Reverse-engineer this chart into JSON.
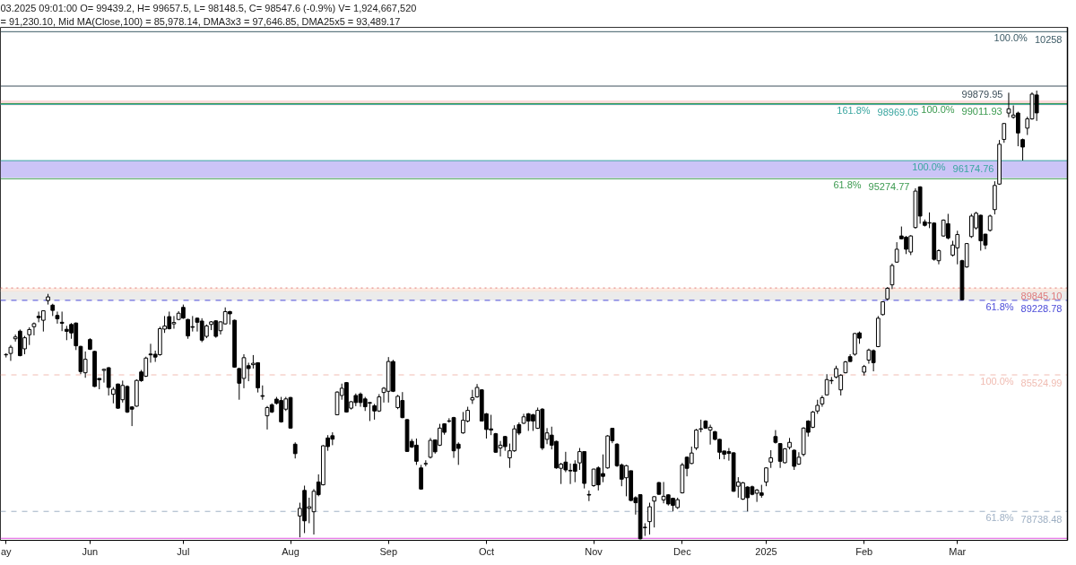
{
  "chart_data": {
    "type": "candlestick",
    "title": "03.2025 09:01:00 O= 99439.2, H= 99657.5, L= 98148.5, C= 98547.6 (-0.9%) V= 1,924,667,520",
    "subtitle": "= 91,230.10, Mid MA(Close,100) = 85,978.14, DMA3x3 = 97,646.85, DMA25x5 = 93,489.17",
    "categories": [
      "ay",
      null,
      null,
      null,
      null,
      null,
      null,
      null,
      null,
      null,
      null,
      null,
      null,
      null,
      null,
      null,
      null,
      null,
      "Jun",
      null,
      null,
      null,
      null,
      null,
      null,
      null,
      null,
      null,
      null,
      null,
      null,
      null,
      null,
      null,
      null,
      null,
      null,
      null,
      "Jul",
      null,
      null,
      null,
      null,
      null,
      null,
      null,
      null,
      null,
      null,
      null,
      null,
      null,
      null,
      null,
      null,
      null,
      null,
      null,
      null,
      null,
      null,
      "Aug",
      null,
      null,
      null,
      null,
      null,
      null,
      null,
      null,
      null,
      null,
      null,
      null,
      null,
      null,
      null,
      null,
      null,
      null,
      null,
      null,
      "Sep",
      null,
      null,
      null,
      null,
      null,
      null,
      null,
      null,
      null,
      null,
      null,
      null,
      null,
      null,
      null,
      null,
      null,
      null,
      null,
      null,
      "Oct",
      null,
      null,
      null,
      null,
      null,
      null,
      null,
      null,
      null,
      null,
      null,
      null,
      null,
      null,
      null,
      null,
      null,
      null,
      null,
      null,
      null,
      null,
      "Nov",
      null,
      null,
      null,
      null,
      null,
      null,
      null,
      null,
      null,
      null,
      null,
      null,
      null,
      null,
      null,
      null,
      null,
      null,
      "Dec",
      null,
      null,
      null,
      null,
      null,
      null,
      null,
      null,
      null,
      null,
      null,
      null,
      null,
      null,
      null,
      null,
      null,
      "2025",
      null,
      null,
      null,
      null,
      null,
      null,
      null,
      null,
      null,
      null,
      null,
      null,
      null,
      null,
      null,
      null,
      null,
      null,
      null,
      null,
      "Feb",
      null,
      null,
      null,
      null,
      null,
      null,
      null,
      null,
      null,
      null,
      null,
      null,
      null,
      null,
      null,
      null,
      null,
      null,
      null,
      "Mar",
      null,
      null,
      null,
      null,
      null,
      null,
      null,
      null,
      null,
      null,
      null,
      null,
      null,
      null,
      null,
      null,
      null
    ],
    "ohlc": [
      [
        86520,
        86600,
        86390,
        86540
      ],
      [
        86590,
        87010,
        86220,
        86900
      ],
      [
        87320,
        87530,
        87180,
        87410
      ],
      [
        87700,
        87780,
        86450,
        86480
      ],
      [
        86820,
        87460,
        86550,
        87370
      ],
      [
        87520,
        87890,
        87010,
        87780
      ],
      [
        87920,
        88130,
        87490,
        88070
      ],
      [
        88440,
        88670,
        88140,
        88370
      ],
      [
        88240,
        88730,
        87680,
        88710
      ],
      [
        89220,
        89550,
        89020,
        89400
      ],
      [
        88990,
        89060,
        88450,
        88730
      ],
      [
        88480,
        88670,
        88070,
        88310
      ],
      [
        88140,
        88670,
        87700,
        88090
      ],
      [
        87790,
        87960,
        87250,
        87690
      ],
      [
        88030,
        88100,
        87320,
        87610
      ],
      [
        88100,
        88130,
        86760,
        86970
      ],
      [
        86940,
        86970,
        85560,
        85690
      ],
      [
        85630,
        86690,
        85380,
        86300
      ],
      [
        87280,
        87350,
        86760,
        86800
      ],
      [
        86690,
        86720,
        84920,
        84950
      ],
      [
        85350,
        85350,
        84810,
        85280
      ],
      [
        85750,
        85840,
        85140,
        85800
      ],
      [
        85880,
        85910,
        84500,
        84900
      ],
      [
        84560,
        84920,
        84110,
        84810
      ],
      [
        85070,
        85090,
        83840,
        83870
      ],
      [
        84290,
        85240,
        84150,
        85000
      ],
      [
        84950,
        85000,
        83630,
        83680
      ],
      [
        83930,
        83970,
        82980,
        83820
      ],
      [
        83970,
        85300,
        83940,
        85250
      ],
      [
        85670,
        85770,
        85180,
        85240
      ],
      [
        85460,
        86430,
        85420,
        86360
      ],
      [
        86560,
        87070,
        86130,
        86520
      ],
      [
        86550,
        86730,
        86170,
        86410
      ],
      [
        86530,
        87920,
        86480,
        87820
      ],
      [
        87800,
        88450,
        87610,
        87950
      ],
      [
        88420,
        88670,
        87780,
        87820
      ],
      [
        88060,
        88450,
        87820,
        88130
      ],
      [
        88280,
        88690,
        88240,
        88590
      ],
      [
        88880,
        89020,
        88310,
        88350
      ],
      [
        88280,
        88310,
        87320,
        87460
      ],
      [
        87920,
        88450,
        87680,
        87890
      ],
      [
        88340,
        88380,
        87680,
        88140
      ],
      [
        88200,
        88340,
        87150,
        87250
      ],
      [
        87440,
        88030,
        87350,
        87960
      ],
      [
        88030,
        88200,
        87750,
        88160
      ],
      [
        88210,
        88240,
        87370,
        87440
      ],
      [
        87720,
        88180,
        87530,
        88160
      ],
      [
        88060,
        88880,
        88030,
        88670
      ],
      [
        88670,
        88710,
        88030,
        88560
      ],
      [
        88240,
        88270,
        85880,
        85910
      ],
      [
        85840,
        85870,
        84290,
        85110
      ],
      [
        85350,
        86550,
        84860,
        86380
      ],
      [
        85980,
        86130,
        85210,
        85840
      ],
      [
        86030,
        86510,
        85840,
        86100
      ],
      [
        86130,
        86150,
        84650,
        84880
      ],
      [
        84490,
        85000,
        84290,
        84460
      ],
      [
        83490,
        83980,
        82810,
        83900
      ],
      [
        84040,
        84110,
        83630,
        83680
      ],
      [
        84320,
        84430,
        84050,
        84110
      ],
      [
        84250,
        84430,
        83150,
        83190
      ],
      [
        83820,
        84430,
        83730,
        84330
      ],
      [
        84400,
        84430,
        82850,
        82880
      ],
      [
        82080,
        82170,
        81370,
        81610
      ],
      [
        78510,
        79170,
        77450,
        78890
      ],
      [
        79780,
        80020,
        77660,
        78270
      ],
      [
        78890,
        79420,
        78150,
        78970
      ],
      [
        78720,
        79850,
        77590,
        79740
      ],
      [
        80200,
        80580,
        79490,
        79570
      ],
      [
        80060,
        82030,
        80030,
        82000
      ],
      [
        82390,
        82530,
        81750,
        81960
      ],
      [
        82500,
        82670,
        82030,
        82330
      ],
      [
        83540,
        84710,
        83520,
        84670
      ],
      [
        84500,
        85090,
        84290,
        84860
      ],
      [
        85140,
        85170,
        83650,
        83680
      ],
      [
        83870,
        84220,
        83800,
        84190
      ],
      [
        84500,
        84600,
        83970,
        84150
      ],
      [
        84570,
        84650,
        83940,
        84150
      ],
      [
        84330,
        84430,
        83730,
        83940
      ],
      [
        84150,
        84160,
        83230,
        84120
      ],
      [
        83990,
        84080,
        83300,
        83730
      ],
      [
        83730,
        84570,
        83680,
        84430
      ],
      [
        84650,
        84920,
        84150,
        84860
      ],
      [
        84710,
        86410,
        84150,
        86190
      ],
      [
        86190,
        86270,
        84670,
        84710
      ],
      [
        83900,
        84530,
        83820,
        84460
      ],
      [
        84250,
        84670,
        83370,
        83400
      ],
      [
        83300,
        83330,
        81700,
        81720
      ],
      [
        82220,
        82340,
        81890,
        81940
      ],
      [
        82030,
        82360,
        81050,
        81230
      ],
      [
        80900,
        81050,
        79820,
        79850
      ],
      [
        81100,
        81280,
        80980,
        81120
      ],
      [
        81430,
        82390,
        81370,
        82270
      ],
      [
        82290,
        82310,
        81610,
        81700
      ],
      [
        82030,
        83090,
        81990,
        82880
      ],
      [
        83090,
        83120,
        82550,
        82670
      ],
      [
        83240,
        83370,
        83150,
        83220
      ],
      [
        83400,
        83440,
        81400,
        81750
      ],
      [
        82080,
        82170,
        81050,
        81870
      ],
      [
        82640,
        83680,
        82600,
        83270
      ],
      [
        83230,
        83940,
        83160,
        83760
      ],
      [
        84280,
        84780,
        84080,
        84390
      ],
      [
        84430,
        85070,
        84390,
        84900
      ],
      [
        84780,
        84810,
        83230,
        83230
      ],
      [
        83590,
        83630,
        82360,
        82810
      ],
      [
        82840,
        83540,
        82530,
        82780
      ],
      [
        82600,
        82640,
        81650,
        81680
      ],
      [
        81890,
        82240,
        81470,
        82030
      ],
      [
        82460,
        82490,
        81750,
        81960
      ],
      [
        81400,
        82110,
        80900,
        81750
      ],
      [
        81750,
        83020,
        81700,
        82840
      ],
      [
        83050,
        83160,
        82530,
        82630
      ],
      [
        83120,
        83590,
        83090,
        83440
      ],
      [
        83590,
        83630,
        82740,
        83230
      ],
      [
        83540,
        83590,
        82740,
        83230
      ],
      [
        82870,
        83900,
        82840,
        83760
      ],
      [
        83820,
        83870,
        81790,
        81890
      ],
      [
        82320,
        82880,
        82080,
        82640
      ],
      [
        82530,
        82950,
        81820,
        82030
      ],
      [
        82220,
        82250,
        80860,
        80900
      ],
      [
        80880,
        81150,
        80100,
        81090
      ],
      [
        81190,
        81700,
        80690,
        80800
      ],
      [
        80780,
        81120,
        80100,
        80750
      ],
      [
        81090,
        81280,
        80190,
        80730
      ],
      [
        81150,
        81890,
        80800,
        81710
      ],
      [
        81710,
        81720,
        79880,
        80130
      ],
      [
        79580,
        79780,
        79250,
        79550
      ],
      [
        80020,
        80860,
        79960,
        80840
      ],
      [
        80900,
        80980,
        79780,
        80060
      ],
      [
        80620,
        81570,
        80190,
        80480
      ],
      [
        80900,
        82530,
        80860,
        82490
      ],
      [
        82870,
        82880,
        82130,
        82250
      ],
      [
        82080,
        82130,
        80950,
        81010
      ],
      [
        81050,
        81120,
        79990,
        80340
      ],
      [
        80410,
        81050,
        79490,
        81010
      ],
      [
        80760,
        80760,
        79250,
        79280
      ],
      [
        79420,
        79490,
        78580,
        79170
      ],
      [
        79570,
        79590,
        77340,
        77380
      ],
      [
        77950,
        78150,
        77520,
        77930
      ],
      [
        78230,
        79170,
        77590,
        78970
      ],
      [
        79250,
        79490,
        77940,
        79470
      ],
      [
        80170,
        80200,
        79570,
        79590
      ],
      [
        79310,
        80200,
        79140,
        79490
      ],
      [
        79560,
        79590,
        79030,
        79110
      ],
      [
        79390,
        79420,
        78740,
        79040
      ],
      [
        78930,
        79420,
        78860,
        79320
      ],
      [
        79660,
        81150,
        79630,
        81050
      ],
      [
        81430,
        81470,
        80480,
        80880
      ],
      [
        81120,
        81960,
        81090,
        81640
      ],
      [
        81890,
        82840,
        81790,
        82780
      ],
      [
        82820,
        83300,
        82670,
        82850
      ],
      [
        83230,
        83270,
        82840,
        82880
      ],
      [
        82780,
        83050,
        82060,
        82920
      ],
      [
        82700,
        82740,
        82270,
        82320
      ],
      [
        82320,
        82340,
        81330,
        81680
      ],
      [
        81740,
        81750,
        81330,
        81580
      ],
      [
        81710,
        81890,
        81260,
        81620
      ],
      [
        81650,
        81680,
        79710,
        79740
      ],
      [
        79990,
        80440,
        79420,
        80200
      ],
      [
        79350,
        80200,
        79310,
        80160
      ],
      [
        79950,
        79990,
        78740,
        79420
      ],
      [
        79960,
        80020,
        79540,
        79590
      ],
      [
        79640,
        79850,
        79210,
        79800
      ],
      [
        79660,
        80060,
        79420,
        79540
      ],
      [
        80200,
        80930,
        79990,
        80900
      ],
      [
        81190,
        81780,
        80900,
        81400
      ],
      [
        82460,
        82780,
        82110,
        82170
      ],
      [
        82110,
        82130,
        80900,
        81230
      ],
      [
        81160,
        81880,
        81120,
        81850
      ],
      [
        81920,
        82390,
        81820,
        82170
      ],
      [
        81780,
        81820,
        80800,
        80980
      ],
      [
        81090,
        81680,
        81050,
        81430
      ],
      [
        81570,
        82920,
        81480,
        82880
      ],
      [
        83230,
        83270,
        82460,
        82670
      ],
      [
        82920,
        83730,
        82880,
        83680
      ],
      [
        83730,
        84290,
        83590,
        84010
      ],
      [
        84080,
        84500,
        83940,
        84390
      ],
      [
        84530,
        85560,
        84500,
        85290
      ],
      [
        85230,
        85420,
        85070,
        85250
      ],
      [
        85420,
        85980,
        85350,
        85840
      ],
      [
        84780,
        85560,
        84500,
        85510
      ],
      [
        85630,
        86220,
        85600,
        86170
      ],
      [
        86430,
        86550,
        86170,
        86190
      ],
      [
        86550,
        87610,
        86480,
        87580
      ],
      [
        87610,
        87680,
        87070,
        87350
      ],
      [
        85660,
        86020,
        85490,
        85940
      ],
      [
        86260,
        86830,
        86080,
        86760
      ],
      [
        86730,
        86790,
        85700,
        86130
      ],
      [
        86930,
        88450,
        86900,
        88340
      ],
      [
        88520,
        89180,
        88480,
        89160
      ],
      [
        89300,
        89890,
        89230,
        89830
      ],
      [
        90000,
        91060,
        89790,
        90960
      ],
      [
        91130,
        92120,
        91100,
        91770
      ],
      [
        92430,
        92900,
        92260,
        92290
      ],
      [
        92370,
        92430,
        91530,
        91770
      ],
      [
        91630,
        92470,
        91480,
        92430
      ],
      [
        92850,
        94800,
        92790,
        94660
      ],
      [
        94870,
        94900,
        93040,
        93420
      ],
      [
        93130,
        93250,
        92900,
        92960
      ],
      [
        93070,
        93600,
        92820,
        93090
      ],
      [
        93070,
        93110,
        91200,
        91270
      ],
      [
        91200,
        91770,
        91020,
        91700
      ],
      [
        92430,
        93250,
        92400,
        93220
      ],
      [
        93040,
        93530,
        92260,
        92330
      ],
      [
        91480,
        92190,
        91410,
        91980
      ],
      [
        91840,
        92690,
        91020,
        92500
      ],
      [
        91200,
        91250,
        89230,
        89260
      ],
      [
        90890,
        92080,
        90850,
        92050
      ],
      [
        92400,
        93530,
        92330,
        93420
      ],
      [
        92830,
        93630,
        92750,
        93560
      ],
      [
        93460,
        93490,
        91700,
        92190
      ],
      [
        92520,
        92540,
        91770,
        91980
      ],
      [
        92710,
        93490,
        92650,
        93420
      ],
      [
        93740,
        95150,
        93500,
        94940
      ],
      [
        95010,
        97200,
        94970,
        96990
      ],
      [
        97230,
        98040,
        97060,
        98020
      ],
      [
        98540,
        99550,
        98330,
        98750
      ],
      [
        98330,
        98920,
        98260,
        98440
      ],
      [
        98540,
        98610,
        96890,
        97550
      ],
      [
        97220,
        97270,
        96180,
        96850
      ],
      [
        97790,
        98360,
        97450,
        98250
      ],
      [
        98250,
        99570,
        98210,
        99480
      ],
      [
        99439.2,
        99657.5,
        98148.5,
        98547.6
      ]
    ],
    "color": "#000000",
    "ylim": [
      77300,
      102800
    ],
    "tick_labels": "x",
    "ref_lines": [
      {
        "axis": "y",
        "value": 102585,
        "color": "#3d5b66"
      },
      {
        "axis": "y",
        "value": 99879.95,
        "label": "99879.95",
        "color": "#3d4f5a"
      },
      {
        "axis": "y",
        "value": 99011.93,
        "label": "99011.93",
        "color": "#3c9a50"
      },
      {
        "axis": "y",
        "value": 98969.05,
        "label": "98969.05",
        "color": "#3aa6a0"
      },
      {
        "axis": "y",
        "value": 96174.76,
        "label": "96174.76",
        "color": "#3aa6a0"
      },
      {
        "axis": "y",
        "value": 95274.77,
        "label": "95274.77",
        "color": "#3c9a50"
      },
      {
        "axis": "y",
        "value": 89845.1,
        "label": "89845.10",
        "color": "#e07a7a",
        "line_style": "dotted"
      },
      {
        "axis": "y",
        "value": 89228.78,
        "label": "89228.78",
        "color": "#4b4bd8",
        "line_style": "dashed"
      },
      {
        "axis": "y",
        "value": 85524.99,
        "label": "85524.99",
        "color": "#f0bcb2",
        "line_style": "dashed"
      },
      {
        "axis": "y",
        "value": 78738.48,
        "label": "78738.48",
        "color": "#9fb0c4",
        "line_style": "dashed"
      },
      {
        "axis": "y",
        "value": 77400,
        "color": "#e055e0"
      }
    ],
    "bands": [
      {
        "axis": "y",
        "from": 95320,
        "to": 96174.76,
        "color": "#a99cf2"
      },
      {
        "axis": "y",
        "from": 89228.78,
        "to": 89720,
        "color": "#dedede"
      },
      {
        "axis": "y",
        "from": 98920,
        "to": 99170,
        "color": "#f6c4c4"
      },
      {
        "axis": "y",
        "from": 89660,
        "to": 89845.1,
        "color": "#fbe0d0"
      }
    ],
    "annotations": [
      {
        "text": "100.0%",
        "y": 102585
      },
      {
        "text": "10258",
        "y": 102585
      },
      {
        "text": "100.0%",
        "y": 99011.93
      },
      {
        "text": "161.8%",
        "y": 98969.05
      },
      {
        "text": "100.0%",
        "y": 96174.76
      },
      {
        "text": "61.8%",
        "y": 95274.77
      },
      {
        "text": "61.8%",
        "y": 89228.78
      },
      {
        "text": "100.0%",
        "y": 85524.99
      },
      {
        "text": "61.8%",
        "y": 78738.48
      }
    ]
  }
}
